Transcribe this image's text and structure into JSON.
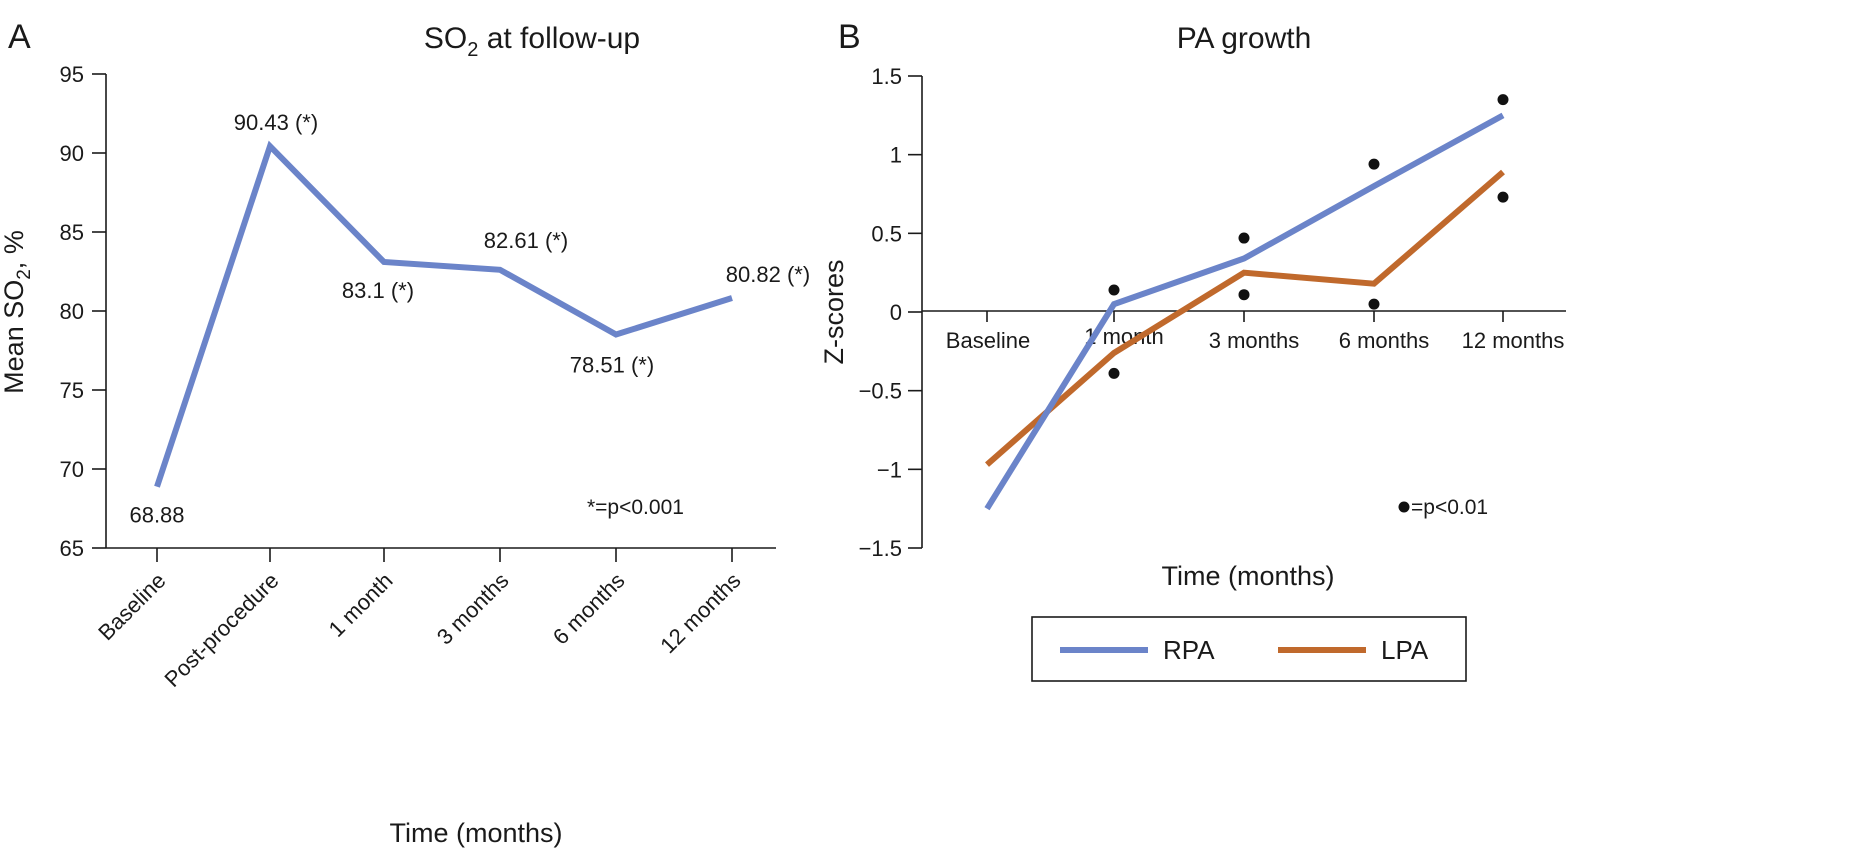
{
  "chart_data": [
    {
      "panel": "A",
      "type": "line",
      "title": "SO",
      "title_subscript": "2",
      "title_suffix": " at follow-up",
      "xlabel": "Time (months)",
      "ylabel": "Mean SO",
      "ylabel_subscript": "2",
      "ylabel_suffix": ", %",
      "ylim": [
        65,
        95
      ],
      "yticks": [
        65,
        70,
        75,
        80,
        85,
        90,
        95
      ],
      "categories": [
        "Baseline",
        "Post-procedure",
        "1 month",
        "3 months",
        "6 months",
        "12 months"
      ],
      "series": [
        {
          "name": "SO2",
          "color": "#6b84c9",
          "values": [
            68.88,
            90.43,
            83.1,
            82.61,
            78.51,
            80.82
          ]
        }
      ],
      "data_labels": [
        "68.88",
        "90.43 (*)",
        "83.1 (*)",
        "82.61 (*)",
        "78.51 (*)",
        "80.82 (*)"
      ],
      "annotation": "*=p<0.001"
    },
    {
      "panel": "B",
      "type": "line",
      "title": "PA growth",
      "xlabel": "Time (months)",
      "ylabel": "Z-scores",
      "ylim": [
        -1.5,
        1.5
      ],
      "yticks": [
        -1.5,
        -1,
        -0.5,
        0,
        0.5,
        1,
        1.5
      ],
      "ytick_labels": [
        "−1.5",
        "−1",
        "−0.5",
        "0",
        "0.5",
        "1",
        "1.5"
      ],
      "categories": [
        "Baseline",
        "1 month",
        "3 months",
        "6 months",
        "12 months"
      ],
      "series": [
        {
          "name": "RPA",
          "color": "#6b84c9",
          "values": [
            -1.25,
            0.05,
            0.34,
            0.8,
            1.25
          ]
        },
        {
          "name": "LPA",
          "color": "#c0692c",
          "values": [
            -0.97,
            -0.26,
            0.25,
            0.18,
            0.89
          ]
        }
      ],
      "significance_markers": [
        {
          "x": "1 month",
          "y": 0.14
        },
        {
          "x": "1 month",
          "y": -0.39
        },
        {
          "x": "3 months",
          "y": 0.47
        },
        {
          "x": "3 months",
          "y": 0.11
        },
        {
          "x": "6 months",
          "y": 0.94
        },
        {
          "x": "6 months",
          "y": 0.05
        },
        {
          "x": "12 months",
          "y": 1.35
        },
        {
          "x": "12 months",
          "y": 0.73
        }
      ],
      "annotation": "=p<0.01",
      "legend": [
        "RPA",
        "LPA"
      ],
      "legend_position": "bottom-center"
    }
  ]
}
